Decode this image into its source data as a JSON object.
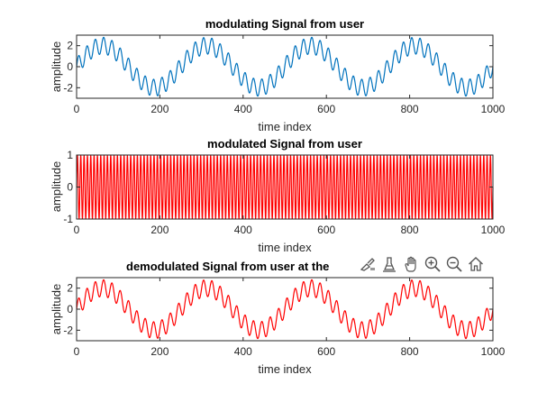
{
  "colors": {
    "blue": "#0072BD",
    "red": "#FF0000",
    "axis": "#262626"
  },
  "toolbar": {
    "icons": [
      "brush-icon",
      "data-tips-icon",
      "pan-hand-icon",
      "zoom-in-icon",
      "zoom-out-icon",
      "home-icon"
    ]
  },
  "chart_data": [
    {
      "type": "line",
      "title": "modulating Signal from user",
      "xlabel": "time index",
      "ylabel": "amplitude",
      "xlim": [
        0,
        1000
      ],
      "ylim": [
        -3,
        3
      ],
      "xticks": [
        "0",
        "200",
        "400",
        "600",
        "800",
        "1000"
      ],
      "yticks": [
        "-2",
        "0",
        "2"
      ],
      "grid": false,
      "series": [
        {
          "color": "#0072BD",
          "components": [
            {
              "amplitude": 2,
              "period": 250
            },
            {
              "amplitude": 0.8,
              "period": 20
            }
          ],
          "x_range": [
            0,
            1000
          ]
        }
      ]
    },
    {
      "type": "line",
      "title": "modulated Signal from user",
      "xlabel": "time index",
      "ylabel": "amplitude",
      "xlim": [
        0,
        1000
      ],
      "ylim": [
        -1,
        1
      ],
      "xticks": [
        "0",
        "200",
        "400",
        "600",
        "800",
        "1000"
      ],
      "yticks": [
        "-1",
        "0",
        "1"
      ],
      "grid": false,
      "series": [
        {
          "color": "#FF0000",
          "components": [
            {
              "amplitude": 1,
              "period": 8
            }
          ],
          "x_range": [
            0,
            1000
          ]
        }
      ]
    },
    {
      "type": "line",
      "title": "demodulated Signal from user at the",
      "xlabel": "time index",
      "ylabel": "amplitude",
      "xlim": [
        0,
        1000
      ],
      "ylim": [
        -3,
        3
      ],
      "xticks": [
        "0",
        "200",
        "400",
        "600",
        "800",
        "1000"
      ],
      "yticks": [
        "-2",
        "0",
        "2"
      ],
      "grid": false,
      "series": [
        {
          "color": "#FF0000",
          "components": [
            {
              "amplitude": 2,
              "period": 250
            },
            {
              "amplitude": 0.8,
              "period": 20
            }
          ],
          "x_range": [
            0,
            1000
          ]
        }
      ]
    }
  ]
}
